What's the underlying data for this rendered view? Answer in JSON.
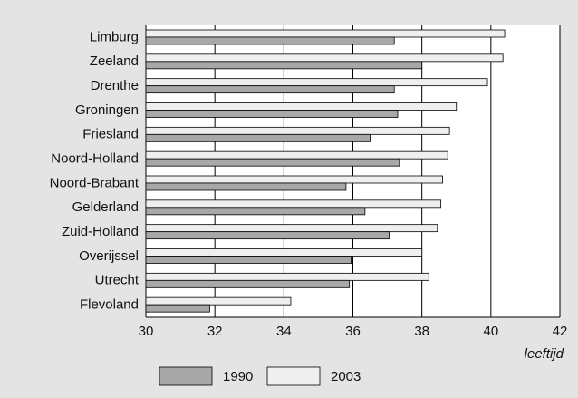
{
  "chart_data": {
    "type": "barh",
    "categories": [
      "Limburg",
      "Zeeland",
      "Drenthe",
      "Groningen",
      "Friesland",
      "Noord-Holland",
      "Noord-Brabant",
      "Gelderland",
      "Zuid-Holland",
      "Overijssel",
      "Utrecht",
      "Flevoland"
    ],
    "series": [
      {
        "name": "1990",
        "color": "#a8a8a8",
        "values": [
          37.2,
          38.0,
          37.2,
          37.3,
          36.5,
          37.35,
          35.8,
          36.35,
          37.05,
          35.95,
          35.9,
          31.85
        ]
      },
      {
        "name": "2003",
        "color": "#efefef",
        "values": [
          40.4,
          40.35,
          39.9,
          39.0,
          38.8,
          38.75,
          38.6,
          38.55,
          38.45,
          38.0,
          38.2,
          34.2
        ]
      }
    ],
    "xlabel": "leeftijd",
    "xlim": [
      30,
      42
    ],
    "xticks": [
      30,
      32,
      34,
      36,
      38,
      40,
      42
    ],
    "grid": true
  }
}
